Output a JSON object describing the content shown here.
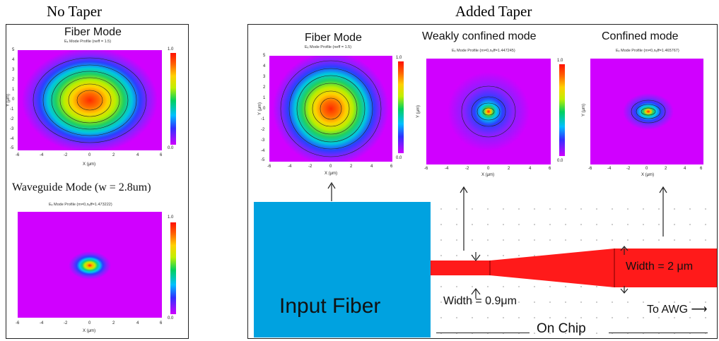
{
  "left": {
    "heading": "No Taper",
    "fiber_title": "Fiber Mode",
    "fiber_subtitle": "Eₓ Mode Profile  (neff = 1.5)",
    "wg_heading": "Waveguide Mode (w = 2.8um)",
    "wg_subtitle": "Eₓ Mode Profile (m=0,nₑff=1.473222)",
    "cbar_top": "1.0",
    "cbar_bottom": "0.0",
    "ylabel": "Y (μm)",
    "xlabel": "X (μm)"
  },
  "right": {
    "heading": "Added Taper",
    "mode1_title": "Fiber Mode",
    "mode1_subtitle": "Eₓ Mode Profile  (neff = 1.5)",
    "mode2_title": "Weakly confined mode",
    "mode2_subtitle": "Eₓ Mode Profile (m=0,nₑff=1.447245)",
    "mode3_title": "Confined mode",
    "mode3_subtitle": "Eₓ Mode Profile (m=0,nₑff=1.465767)",
    "cbar_top": "1.0",
    "cbar_bottom": "0.0",
    "ylabel": "Y (μm)",
    "xlabel": "X (μm)",
    "input_fiber": "Input Fiber",
    "width_small": "Width = 0.9μm",
    "width_large": "Width = 2 μm",
    "to_awg": "To AWG ⟶",
    "on_chip": "On Chip"
  },
  "axis_ticks": {
    "x6": [
      "-6",
      "-4",
      "-2",
      "0",
      "2",
      "4",
      "6"
    ],
    "y5": [
      "5",
      "4",
      "3",
      "2",
      "1",
      "0",
      "-1",
      "-2",
      "-3",
      "-4",
      "-5"
    ]
  },
  "colors": {
    "fiber_blue": "#00a2e0",
    "waveguide_red": "#ff1a1a",
    "mode_background": "#d000ff"
  }
}
